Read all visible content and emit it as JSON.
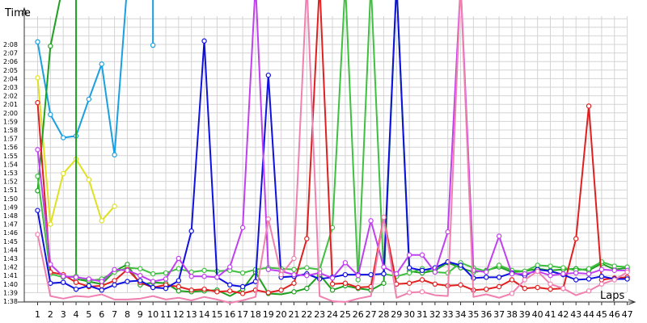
{
  "chart_data": {
    "type": "line",
    "ylabel": "Time",
    "xlabel": "Laps",
    "x": [
      1,
      2,
      3,
      4,
      5,
      6,
      7,
      8,
      9,
      10,
      11,
      12,
      13,
      14,
      15,
      16,
      17,
      18,
      19,
      20,
      21,
      22,
      23,
      24,
      25,
      26,
      27,
      28,
      29,
      30,
      31,
      32,
      33,
      34,
      35,
      36,
      37,
      38,
      39,
      40,
      41,
      42,
      43,
      44,
      45,
      46,
      47
    ],
    "xlim": [
      1,
      47
    ],
    "ylim_seconds": [
      98,
      128
    ],
    "y_tick_labels": [
      "1:38",
      "1:39",
      "1:40",
      "1:41",
      "1:42",
      "1:43",
      "1:44",
      "1:45",
      "1:46",
      "1:47",
      "1:48",
      "1:49",
      "1:50",
      "1:51",
      "1:52",
      "1:53",
      "1:54",
      "1:55",
      "1:56",
      "1:57",
      "1:58",
      "1:59",
      "2:00",
      "2:01",
      "2:02",
      "2:03",
      "2:04",
      "2:05",
      "2:06",
      "2:07",
      "2:08"
    ],
    "grid": true,
    "series": [
      {
        "color": "#1aa0e0",
        "points": [
          [
            1,
            128.3
          ],
          [
            2,
            119.8
          ],
          [
            3,
            117.1
          ],
          [
            4,
            117.3
          ],
          [
            5,
            121.6
          ],
          [
            6,
            125.7
          ],
          [
            7,
            115.1
          ],
          [
            8,
            140
          ],
          [
            10,
            140
          ],
          [
            10,
            127.9
          ]
        ]
      },
      {
        "color": "#e0e020",
        "points": [
          [
            1,
            124.1
          ],
          [
            2,
            107
          ],
          [
            3,
            112.9
          ],
          [
            4,
            114.6
          ],
          [
            5,
            112.2
          ],
          [
            6,
            107.4
          ],
          [
            7,
            109.1
          ]
        ]
      },
      {
        "color": "#20a020",
        "points": [
          [
            1,
            110.9
          ],
          [
            2,
            127.8
          ],
          [
            3,
            140
          ],
          [
            4,
            140
          ],
          [
            4,
            100.6
          ],
          [
            5,
            100.3
          ],
          [
            6,
            100
          ],
          [
            7,
            101.5
          ],
          [
            8,
            102.3
          ],
          [
            9,
            99.9
          ],
          [
            10,
            100.2
          ],
          [
            11,
            100.1
          ],
          [
            12,
            99.2
          ],
          [
            13,
            99.1
          ],
          [
            14,
            99.2
          ],
          [
            15,
            99.3
          ],
          [
            16,
            98.6
          ],
          [
            17,
            99.4
          ],
          [
            18,
            101.4
          ],
          [
            19,
            98.9
          ],
          [
            20,
            98.8
          ],
          [
            21,
            99.1
          ],
          [
            22,
            99.5
          ],
          [
            23,
            101.1
          ],
          [
            24,
            99.3
          ],
          [
            25,
            99.8
          ],
          [
            26,
            99.5
          ],
          [
            27,
            99.3
          ],
          [
            28,
            100.1
          ],
          [
            29,
            140
          ],
          [
            30,
            101.5
          ],
          [
            31,
            101.3
          ],
          [
            32,
            101.6
          ],
          [
            33,
            102.5
          ],
          [
            34,
            101.9
          ],
          [
            35,
            101.4
          ],
          [
            36,
            101.6
          ],
          [
            37,
            102
          ],
          [
            38,
            101.4
          ],
          [
            39,
            101.5
          ],
          [
            40,
            101.8
          ],
          [
            41,
            101.6
          ],
          [
            42,
            101.7
          ],
          [
            43,
            101.8
          ],
          [
            44,
            101.6
          ],
          [
            45,
            102.4
          ],
          [
            46,
            101.7
          ],
          [
            47,
            101.9
          ]
        ]
      },
      {
        "color": "#40c040",
        "points": [
          [
            1,
            112.6
          ],
          [
            2,
            101.2
          ],
          [
            3,
            100.8
          ],
          [
            4,
            100.9
          ],
          [
            5,
            100.4
          ],
          [
            6,
            100.6
          ],
          [
            7,
            101.4
          ],
          [
            8,
            101.9
          ],
          [
            9,
            101.8
          ],
          [
            10,
            101.2
          ],
          [
            11,
            101.3
          ],
          [
            12,
            101.8
          ],
          [
            13,
            101.4
          ],
          [
            14,
            101.6
          ],
          [
            15,
            101.5
          ],
          [
            16,
            101.6
          ],
          [
            17,
            101.3
          ],
          [
            18,
            101.7
          ],
          [
            19,
            101.9
          ],
          [
            20,
            101.8
          ],
          [
            21,
            101.7
          ],
          [
            22,
            101.9
          ],
          [
            23,
            101.7
          ],
          [
            24,
            106.6
          ],
          [
            25,
            140
          ],
          [
            26,
            100.5
          ],
          [
            27,
            140
          ],
          [
            28,
            101.2
          ],
          [
            29,
            100.9
          ],
          [
            30,
            101.3
          ],
          [
            31,
            101.8
          ],
          [
            32,
            101.4
          ],
          [
            33,
            101.3
          ],
          [
            34,
            102.5
          ],
          [
            35,
            101.9
          ],
          [
            36,
            101.5
          ],
          [
            37,
            102.2
          ],
          [
            38,
            101.6
          ],
          [
            39,
            101.5
          ],
          [
            40,
            102.2
          ],
          [
            41,
            102.1
          ],
          [
            42,
            101.9
          ],
          [
            43,
            101.6
          ],
          [
            44,
            101.8
          ],
          [
            45,
            102.6
          ],
          [
            46,
            102.1
          ],
          [
            47,
            102
          ]
        ]
      },
      {
        "color": "#e02020",
        "points": [
          [
            1,
            121.2
          ],
          [
            2,
            101.4
          ],
          [
            3,
            101.1
          ],
          [
            4,
            100.2
          ],
          [
            5,
            99.7
          ],
          [
            6,
            99.8
          ],
          [
            7,
            100.4
          ],
          [
            8,
            101.7
          ],
          [
            9,
            100.2
          ],
          [
            10,
            99.6
          ],
          [
            11,
            99.9
          ],
          [
            12,
            99.7
          ],
          [
            13,
            99.3
          ],
          [
            14,
            99.4
          ],
          [
            15,
            99.1
          ],
          [
            16,
            99.2
          ],
          [
            17,
            98.9
          ],
          [
            18,
            99.3
          ],
          [
            19,
            99
          ],
          [
            20,
            99.3
          ],
          [
            21,
            100.1
          ],
          [
            22,
            105.3
          ],
          [
            23,
            140
          ],
          [
            24,
            100
          ],
          [
            25,
            100.1
          ],
          [
            26,
            99.6
          ],
          [
            27,
            99.7
          ],
          [
            28,
            107.8
          ],
          [
            29,
            100
          ],
          [
            30,
            100.1
          ],
          [
            31,
            100.5
          ],
          [
            32,
            100
          ],
          [
            33,
            99.8
          ],
          [
            34,
            99.9
          ],
          [
            35,
            99.3
          ],
          [
            36,
            99.4
          ],
          [
            37,
            99.7
          ],
          [
            38,
            100.5
          ],
          [
            39,
            99.5
          ],
          [
            40,
            99.6
          ],
          [
            41,
            99.4
          ],
          [
            42,
            99.5
          ],
          [
            43,
            105.3
          ],
          [
            44,
            120.8
          ],
          [
            45,
            100.5
          ],
          [
            46,
            100.7
          ],
          [
            47,
            100.8
          ]
        ]
      },
      {
        "color": "#1010e0",
        "points": [
          [
            1,
            108.6
          ],
          [
            2,
            100.1
          ],
          [
            3,
            100.2
          ],
          [
            4,
            99.4
          ],
          [
            5,
            99.8
          ],
          [
            6,
            99.3
          ],
          [
            7,
            99.9
          ],
          [
            8,
            100.3
          ],
          [
            9,
            100.4
          ],
          [
            10,
            99.6
          ],
          [
            11,
            99.5
          ],
          [
            12,
            100.4
          ],
          [
            13,
            106.2
          ],
          [
            14,
            128.4
          ],
          [
            15,
            100.8
          ],
          [
            16,
            99.9
          ],
          [
            17,
            99.7
          ],
          [
            18,
            100.3
          ],
          [
            19,
            124.4
          ],
          [
            20,
            100.8
          ],
          [
            21,
            100.9
          ],
          [
            22,
            101.2
          ],
          [
            23,
            100.6
          ],
          [
            24,
            100.8
          ],
          [
            25,
            101.1
          ],
          [
            26,
            101.1
          ],
          [
            27,
            101.1
          ],
          [
            28,
            101.2
          ],
          [
            29,
            140
          ],
          [
            30,
            101.9
          ],
          [
            31,
            101.6
          ],
          [
            32,
            101.9
          ],
          [
            33,
            102.6
          ],
          [
            34,
            102.2
          ],
          [
            35,
            100.7
          ],
          [
            36,
            100.8
          ],
          [
            37,
            100.8
          ],
          [
            38,
            101.3
          ],
          [
            39,
            101
          ],
          [
            40,
            101.7
          ],
          [
            41,
            101.5
          ],
          [
            42,
            101.1
          ],
          [
            43,
            100.5
          ],
          [
            44,
            100.6
          ],
          [
            45,
            100.9
          ],
          [
            46,
            100.6
          ],
          [
            47,
            100.6
          ]
        ]
      },
      {
        "color": "#c040f0",
        "points": [
          [
            1,
            115.7
          ],
          [
            2,
            102.3
          ],
          [
            3,
            100.9
          ],
          [
            4,
            100.8
          ],
          [
            5,
            100.6
          ],
          [
            6,
            100.3
          ],
          [
            7,
            101.7
          ],
          [
            8,
            101.6
          ],
          [
            9,
            101
          ],
          [
            10,
            100.3
          ],
          [
            11,
            100.6
          ],
          [
            12,
            103
          ],
          [
            13,
            100.9
          ],
          [
            14,
            100.9
          ],
          [
            15,
            100.8
          ],
          [
            16,
            102
          ],
          [
            17,
            106.6
          ],
          [
            18,
            140
          ],
          [
            19,
            101.7
          ],
          [
            20,
            101.5
          ],
          [
            21,
            101.1
          ],
          [
            22,
            101
          ],
          [
            23,
            101.3
          ],
          [
            24,
            100.7
          ],
          [
            25,
            102.5
          ],
          [
            26,
            101
          ],
          [
            27,
            107.4
          ],
          [
            28,
            102
          ],
          [
            29,
            101.2
          ],
          [
            30,
            103.4
          ],
          [
            31,
            103.4
          ],
          [
            32,
            101.4
          ],
          [
            33,
            106.1
          ],
          [
            34,
            140
          ],
          [
            35,
            101.6
          ],
          [
            36,
            101.4
          ],
          [
            37,
            105.6
          ],
          [
            38,
            101.2
          ],
          [
            39,
            101.2
          ],
          [
            40,
            101.5
          ],
          [
            41,
            101
          ],
          [
            42,
            101.2
          ],
          [
            43,
            101.3
          ],
          [
            44,
            101.2
          ],
          [
            45,
            101.7
          ],
          [
            46,
            101.6
          ],
          [
            47,
            101.6
          ]
        ]
      },
      {
        "color": "#f080b0",
        "points": [
          [
            1,
            105.8
          ],
          [
            2,
            98.6
          ],
          [
            3,
            98.3
          ],
          [
            4,
            98.6
          ],
          [
            5,
            98.5
          ],
          [
            6,
            98.8
          ],
          [
            7,
            98.2
          ],
          [
            8,
            98.2
          ],
          [
            9,
            98.3
          ],
          [
            10,
            98.6
          ],
          [
            11,
            98.2
          ],
          [
            12,
            98.4
          ],
          [
            13,
            98.1
          ],
          [
            14,
            98.5
          ],
          [
            15,
            98.2
          ],
          [
            16,
            97.8
          ],
          [
            17,
            98.1
          ],
          [
            18,
            98.5
          ],
          [
            19,
            107.6
          ],
          [
            20,
            101.1
          ],
          [
            21,
            103
          ],
          [
            22,
            140
          ],
          [
            23,
            98.6
          ],
          [
            24,
            98
          ],
          [
            25,
            97.9
          ],
          [
            26,
            98.3
          ],
          [
            27,
            98.6
          ],
          [
            28,
            107.8
          ],
          [
            29,
            98.4
          ],
          [
            30,
            99
          ],
          [
            31,
            99.1
          ],
          [
            32,
            98.7
          ],
          [
            33,
            98.6
          ],
          [
            34,
            140
          ],
          [
            35,
            98.5
          ],
          [
            36,
            98.8
          ],
          [
            37,
            98.4
          ],
          [
            38,
            98.9
          ],
          [
            39,
            100.5
          ],
          [
            40,
            101.5
          ],
          [
            41,
            100
          ],
          [
            42,
            99.5
          ],
          [
            43,
            98.7
          ],
          [
            44,
            99.2
          ],
          [
            45,
            100
          ],
          [
            46,
            100.5
          ],
          [
            47,
            101.4
          ]
        ]
      }
    ]
  }
}
